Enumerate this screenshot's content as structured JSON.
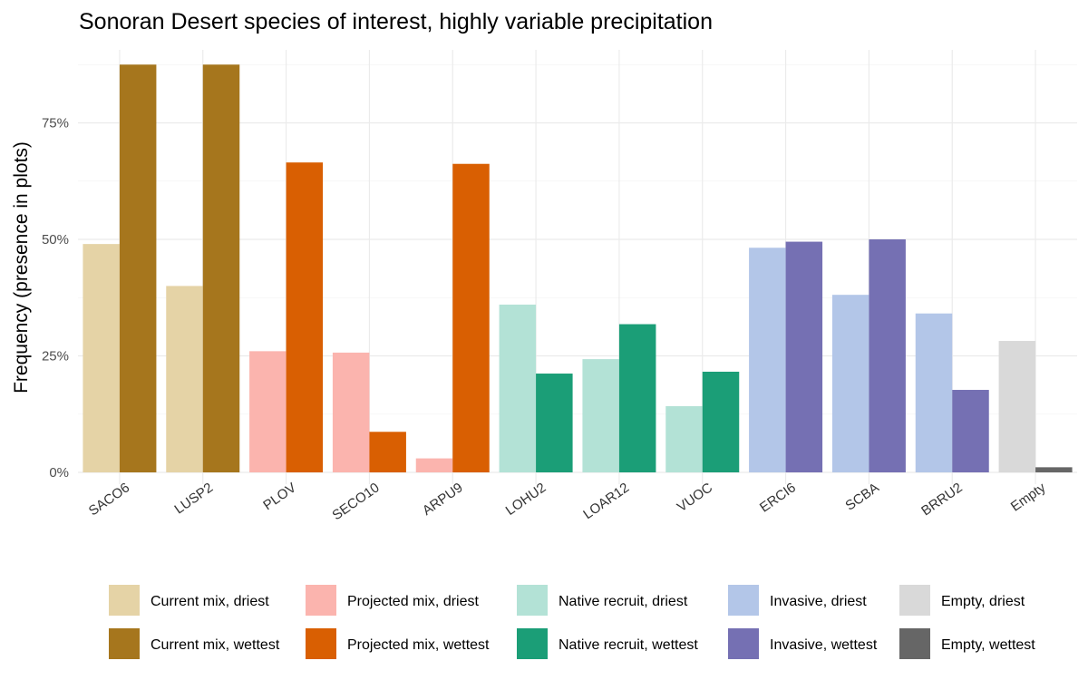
{
  "chart_data": {
    "type": "bar",
    "title": "Sonoran Desert species of interest, highly variable precipitation",
    "xlabel": "",
    "ylabel": "Frequency (presence in plots)",
    "ylim": [
      0,
      0.88
    ],
    "yticks": [
      0,
      0.25,
      0.5,
      0.75
    ],
    "ytick_labels": [
      "0%",
      "25%",
      "50%",
      "75%"
    ],
    "grid": true,
    "legend_position": "bottom",
    "categories": [
      "SACO6",
      "LUSP2",
      "PLOV",
      "SECO10",
      "ARPU9",
      "LOHU2",
      "LOAR12",
      "VUOC",
      "ERCI6",
      "SCBA",
      "BRRU2",
      "Empty"
    ],
    "series": [
      {
        "name": "Current mix, driest",
        "color": "#e5d3a6",
        "values": [
          0.49,
          0.4,
          null,
          null,
          null,
          null,
          null,
          null,
          null,
          null,
          null,
          null
        ]
      },
      {
        "name": "Current mix, wettest",
        "color": "#a6761d",
        "values": [
          0.875,
          0.875,
          null,
          null,
          null,
          null,
          null,
          null,
          null,
          null,
          null,
          null
        ]
      },
      {
        "name": "Projected mix, driest",
        "color": "#fbb4ae",
        "values": [
          null,
          null,
          0.26,
          0.257,
          0.03,
          null,
          null,
          null,
          null,
          null,
          null,
          null
        ]
      },
      {
        "name": "Projected mix, wettest",
        "color": "#d95f02",
        "values": [
          null,
          null,
          0.665,
          0.087,
          0.662,
          null,
          null,
          null,
          null,
          null,
          null,
          null
        ]
      },
      {
        "name": "Native recruit, driest",
        "color": "#b3e2d6",
        "values": [
          null,
          null,
          null,
          null,
          null,
          0.36,
          0.243,
          0.142,
          null,
          null,
          null,
          null
        ]
      },
      {
        "name": "Native recruit, wettest",
        "color": "#1b9e77",
        "values": [
          null,
          null,
          null,
          null,
          null,
          0.212,
          0.318,
          0.216,
          null,
          null,
          null,
          null
        ]
      },
      {
        "name": "Invasive, driest",
        "color": "#b3c6e8",
        "values": [
          null,
          null,
          null,
          null,
          null,
          null,
          null,
          null,
          0.482,
          0.381,
          0.341,
          null
        ]
      },
      {
        "name": "Invasive, wettest",
        "color": "#7570b3",
        "values": [
          null,
          null,
          null,
          null,
          null,
          null,
          null,
          null,
          0.495,
          0.5,
          0.177,
          null
        ]
      },
      {
        "name": "Empty, driest",
        "color": "#d9d9d9",
        "values": [
          null,
          null,
          null,
          null,
          null,
          null,
          null,
          null,
          null,
          null,
          null,
          0.282
        ]
      },
      {
        "name": "Empty, wettest",
        "color": "#666666",
        "values": [
          null,
          null,
          null,
          null,
          null,
          null,
          null,
          null,
          null,
          null,
          null,
          0.011
        ]
      }
    ]
  }
}
